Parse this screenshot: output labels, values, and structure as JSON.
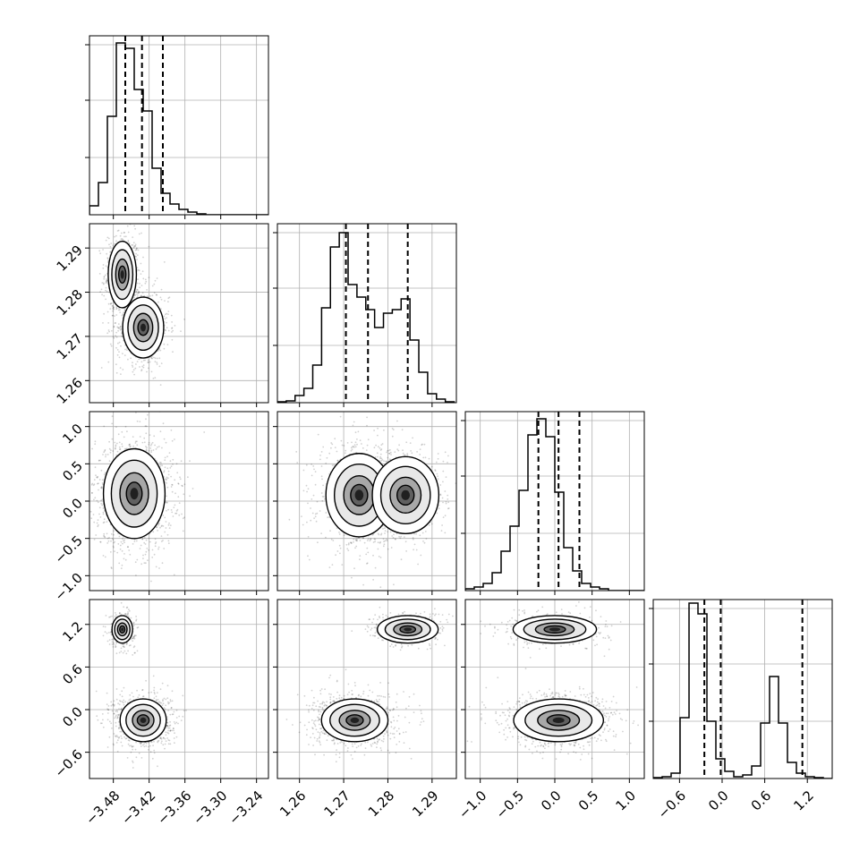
{
  "chart_data": {
    "type": "corner",
    "n_params": 4,
    "grid": true,
    "x_ticks": [
      [
        "−3.48",
        "−3.42",
        "−3.36",
        "−3.30",
        "−3.24"
      ],
      [
        "1.26",
        "1.27",
        "1.28",
        "1.29"
      ],
      [
        "−1.0",
        "−0.5",
        "0.0",
        "0.5",
        "1.0"
      ],
      [
        "−0.6",
        "0.0",
        "0.6",
        "1.2"
      ]
    ],
    "y_ticks": [
      [],
      [
        "1.26",
        "1.27",
        "1.28",
        "1.29"
      ],
      [
        "−1.0",
        "−0.5",
        "0.0",
        "0.5",
        "1.0"
      ],
      [
        "−0.6",
        "0.0",
        "0.6",
        "1.2"
      ]
    ],
    "ranges": [
      [
        -3.52,
        -3.22
      ],
      [
        1.255,
        1.2955
      ],
      [
        -1.2,
        1.2
      ],
      [
        -0.97,
        1.55
      ]
    ],
    "histograms": [
      {
        "edges_start": -3.52,
        "bin_width": 0.015,
        "counts": [
          0.05,
          0.18,
          0.55,
          0.96,
          0.93,
          0.7,
          0.58,
          0.26,
          0.12,
          0.06,
          0.03,
          0.015,
          0.005,
          0,
          0,
          0,
          0,
          0,
          0,
          0
        ],
        "quantiles": [
          -3.46,
          -3.432,
          -3.397
        ]
      },
      {
        "edges_start": 1.255,
        "bin_width": 0.002,
        "counts": [
          0.005,
          0.01,
          0.04,
          0.08,
          0.21,
          0.53,
          0.87,
          0.95,
          0.66,
          0.59,
          0.52,
          0.42,
          0.5,
          0.52,
          0.58,
          0.35,
          0.17,
          0.05,
          0.02,
          0.005
        ],
        "quantiles": [
          1.2705,
          1.2755,
          1.2845
        ]
      },
      {
        "edges_start": -1.2,
        "bin_width": 0.12,
        "counts": [
          0.01,
          0.02,
          0.04,
          0.1,
          0.22,
          0.36,
          0.56,
          0.87,
          0.96,
          0.86,
          0.55,
          0.24,
          0.11,
          0.04,
          0.02,
          0.01,
          0,
          0,
          0,
          0
        ],
        "quantiles": [
          -0.22,
          0.05,
          0.33
        ]
      },
      {
        "edges_start": -0.97,
        "bin_width": 0.126,
        "counts": [
          0.005,
          0.01,
          0.03,
          0.34,
          0.98,
          0.92,
          0.32,
          0.11,
          0.04,
          0.01,
          0.02,
          0.07,
          0.31,
          0.57,
          0.31,
          0.09,
          0.03,
          0.01,
          0.005,
          0
        ],
        "quantiles": [
          -0.25,
          -0.02,
          1.13
        ]
      }
    ],
    "modes_2d": {
      "1,0": [
        {
          "mx": -3.465,
          "my": 1.284,
          "sx": 0.011,
          "sy": 0.0035,
          "w": 0.45
        },
        {
          "mx": -3.43,
          "my": 1.272,
          "sx": 0.016,
          "sy": 0.0032,
          "w": 0.55
        }
      ],
      "2,0": [
        {
          "mx": -3.445,
          "my": 0.1,
          "sx": 0.024,
          "sy": 0.28,
          "w": 1.0
        }
      ],
      "2,1": [
        {
          "mx": 1.2735,
          "my": 0.08,
          "sx": 0.0035,
          "sy": 0.26,
          "w": 0.6
        },
        {
          "mx": 1.284,
          "my": 0.08,
          "sx": 0.0035,
          "sy": 0.24,
          "w": 0.4
        }
      ],
      "3,0": [
        {
          "mx": -3.465,
          "my": 1.13,
          "sx": 0.008,
          "sy": 0.09,
          "w": 0.28
        },
        {
          "mx": -3.43,
          "my": -0.15,
          "sx": 0.018,
          "sy": 0.14,
          "w": 0.72
        }
      ],
      "3,1": [
        {
          "mx": 1.2845,
          "my": 1.13,
          "sx": 0.0032,
          "sy": 0.09,
          "w": 0.28
        },
        {
          "mx": 1.2725,
          "my": -0.15,
          "sx": 0.0035,
          "sy": 0.14,
          "w": 0.72
        }
      ],
      "3,2": [
        {
          "mx": 0.0,
          "my": 1.13,
          "sx": 0.26,
          "sy": 0.09,
          "w": 0.28
        },
        {
          "mx": 0.05,
          "my": -0.15,
          "sx": 0.28,
          "sy": 0.14,
          "w": 0.72
        }
      ]
    }
  }
}
